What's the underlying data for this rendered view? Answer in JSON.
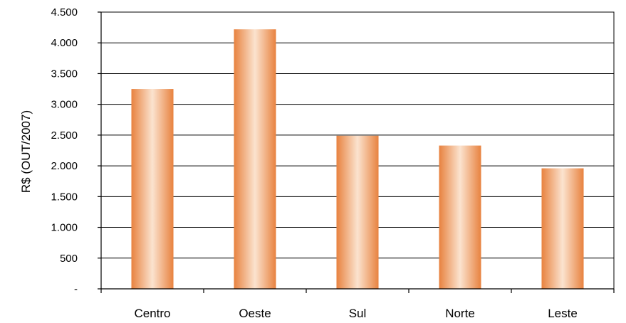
{
  "chart_data": {
    "type": "bar",
    "title": "",
    "xlabel": "",
    "ylabel": "R$ (OUT/2007)",
    "categories": [
      "Centro",
      "Oeste",
      "Sul",
      "Norte",
      "Leste"
    ],
    "values": [
      3250,
      4220,
      2490,
      2330,
      1960
    ],
    "ylim": [
      0,
      4500
    ],
    "yticks": [
      0,
      500,
      1000,
      1500,
      2000,
      2500,
      3000,
      3500,
      4000,
      4500
    ],
    "ytick_labels": [
      "-",
      "500",
      "1.000",
      "1.500",
      "2.000",
      "2.500",
      "3.000",
      "3.500",
      "4.000",
      "4.500"
    ],
    "grid": true,
    "legend": "none",
    "colors": {
      "bar_edge": "#e8823f",
      "bar_mid": "#fbe3cf"
    }
  }
}
